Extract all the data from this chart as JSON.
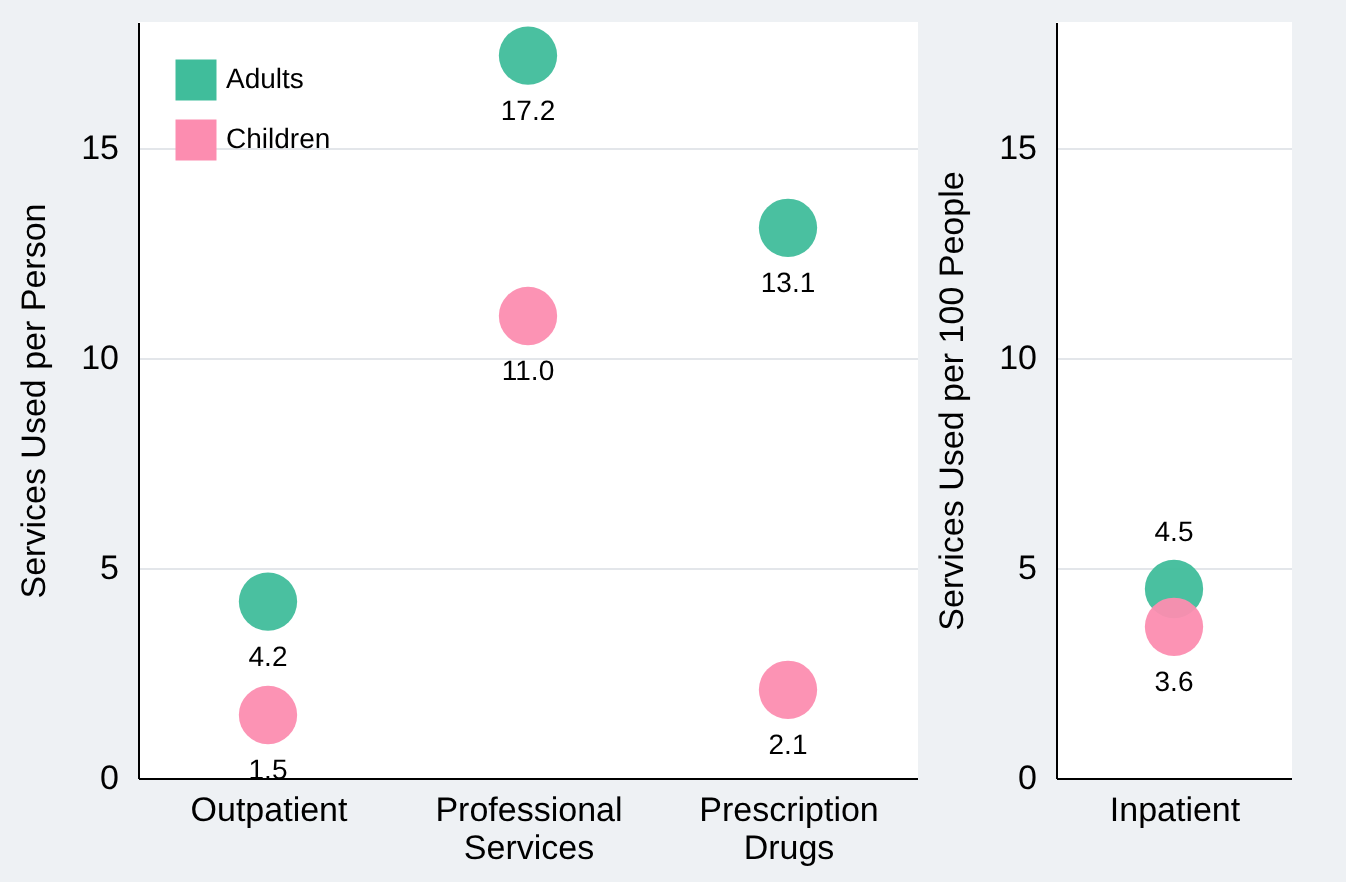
{
  "chart_data": [
    {
      "type": "scatter",
      "ylabel": "Services Used per Person",
      "categories": [
        "Outpatient",
        "Professional Services",
        "Prescription Drugs"
      ],
      "series": [
        {
          "name": "Adults",
          "color": "#40bd9b",
          "values": [
            4.2,
            17.2,
            13.1
          ],
          "value_labels": [
            "4.2",
            "17.2",
            "13.1"
          ]
        },
        {
          "name": "Children",
          "color": "#fc8db0",
          "values": [
            1.5,
            11.0,
            2.1
          ],
          "value_labels": [
            "1.5",
            "11.0",
            "2.1"
          ]
        }
      ],
      "ylim": [
        0,
        18
      ],
      "yticks": [
        0,
        5,
        10,
        15
      ],
      "grid": "y",
      "legend": "top left",
      "marker": "circle"
    },
    {
      "type": "scatter",
      "ylabel": "Services Used per 100 People",
      "categories": [
        "Inpatient"
      ],
      "series": [
        {
          "color": "#40bd9b",
          "values": [
            4.5
          ],
          "value_labels": [
            "4.5"
          ]
        },
        {
          "color": "#fc8db0",
          "values": [
            3.6
          ],
          "value_labels": [
            "3.6"
          ]
        }
      ],
      "ylim": [
        0,
        18
      ],
      "yticks": [
        0,
        5,
        10,
        15
      ],
      "grid": "y",
      "marker": "circle"
    }
  ]
}
